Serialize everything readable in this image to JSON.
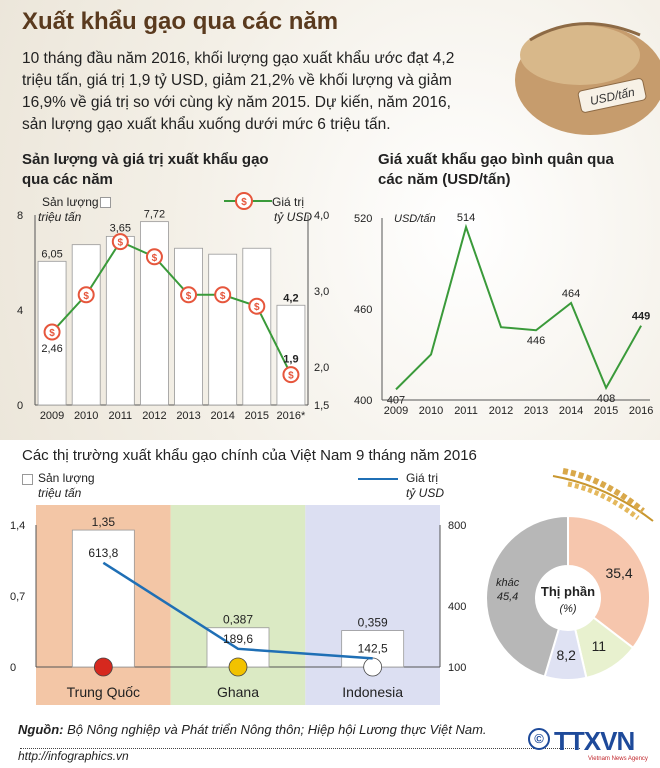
{
  "title": "Xuất khẩu gạo qua các năm",
  "intro": "10 tháng đầu năm 2016, khối lượng gạo xuất khẩu ước đạt 4,2 triệu tấn, giá trị 1,9 tỷ USD, giảm 21,2% về khối lượng và giảm 16,9% về giá trị so với cùng kỳ năm 2015. Dự kiến, năm 2016, sản lượng gạo xuất khẩu xuống dưới mức 6 triệu tấn.",
  "badge_label": "USD/tấn",
  "section_title": "Các thị trường xuất khẩu gạo chính của Việt Nam 9 tháng năm 2016",
  "source_label": "Nguồn:",
  "source_text": "Bộ Nông nghiệp và Phát triển Nông thôn; Hiệp hội Lương thực Việt Nam.",
  "url": "http://infographics.vn",
  "logo_text": "TTXVN",
  "logo_sub": "Vietnam News Agency",
  "colors": {
    "bar": "#ffffff",
    "line_green": "#3a9a3a",
    "line_blue": "#1f6fb5",
    "coin": "#e6563c",
    "china": "#f3c6a6",
    "ghana": "#dbeac4",
    "indonesia": "#dcdff2",
    "pie_khac": "#b7b7b7",
    "pie_china": "#f6c6ad",
    "pie_ghana": "#e8f1cf",
    "pie_indo": "#dfe2f3"
  },
  "chart_data": [
    {
      "type": "bar",
      "title": "Sản lượng và giá trị xuất khẩu gạo qua các năm",
      "legend": {
        "bar_name": "Sản lượng",
        "bar_unit": "triệu tấn",
        "line_name": "Giá trị",
        "line_unit": "tỷ USD"
      },
      "categories": [
        "2009",
        "2010",
        "2011",
        "2012",
        "2013",
        "2014",
        "2015",
        "2016*"
      ],
      "series": [
        {
          "name": "Sản lượng",
          "axis": "left",
          "values": [
            6.05,
            6.75,
            7.1,
            7.72,
            6.6,
            6.35,
            6.6,
            4.2
          ]
        },
        {
          "name": "Giá trị",
          "axis": "right",
          "values": [
            2.46,
            2.95,
            3.65,
            3.45,
            2.95,
            2.95,
            2.8,
            1.9
          ]
        }
      ],
      "labels": {
        "bar": {
          "0": "6,05",
          "3": "7,72",
          "7": "4,2"
        },
        "line": {
          "0": "2,46",
          "2": "3,65",
          "7": "1,9"
        }
      },
      "ylim_left": [
        0,
        8
      ],
      "yticks_left": [
        "0",
        "4",
        "8"
      ],
      "ylim_right": [
        1.5,
        4.0
      ],
      "yticks_right": [
        "1,5",
        "2,0",
        "3,0",
        "4,0"
      ]
    },
    {
      "type": "line",
      "title": "Giá xuất khẩu gạo bình quân qua các năm (USD/tấn)",
      "ylabel": "USD/tấn",
      "categories": [
        "2009",
        "2010",
        "2011",
        "2012",
        "2013",
        "2014",
        "2015",
        "2016"
      ],
      "values": [
        407,
        430,
        514,
        448,
        446,
        464,
        408,
        449
      ],
      "labels": {
        "0": "407",
        "2": "514",
        "4": "446",
        "5": "464",
        "6": "408",
        "7": "449"
      },
      "ylim": [
        400,
        520
      ],
      "yticks": [
        "400",
        "460",
        "520"
      ]
    },
    {
      "type": "bar",
      "title": "Các thị trường xuất khẩu gạo chính của Việt Nam 9 tháng năm 2016",
      "legend": {
        "bar_name": "Sản lượng",
        "bar_unit": "triệu tấn",
        "line_name": "Giá trị",
        "line_unit": "tỷ USD"
      },
      "categories": [
        "Trung Quốc",
        "Ghana",
        "Indonesia"
      ],
      "series": [
        {
          "name": "Sản lượng",
          "axis": "left",
          "values": [
            1.35,
            0.387,
            0.359
          ],
          "labels": [
            "1,35",
            "0,387",
            "0,359"
          ]
        },
        {
          "name": "Giá trị",
          "axis": "right",
          "values": [
            613.8,
            189.6,
            142.5
          ],
          "labels": [
            "613,8",
            "189,6",
            "142,5"
          ]
        }
      ],
      "ylim_left": [
        0,
        1.4
      ],
      "yticks_left": [
        "0",
        "0,7",
        "1,4"
      ],
      "ylim_right": [
        100,
        800
      ],
      "yticks_right": [
        "100",
        "400",
        "800"
      ]
    },
    {
      "type": "pie",
      "title": "Thị phần (%)",
      "slices": [
        {
          "label": "Trung Quốc",
          "value": 35.4,
          "text": "35,4"
        },
        {
          "label": "Ghana",
          "value": 11,
          "text": "11"
        },
        {
          "label": "Indonesia",
          "value": 8.2,
          "text": "8,2"
        },
        {
          "label": "khác",
          "value": 45.4,
          "text": "45,4"
        }
      ],
      "center_title": "Thị phần",
      "center_unit": "(%)",
      "other_label": "khác"
    }
  ]
}
